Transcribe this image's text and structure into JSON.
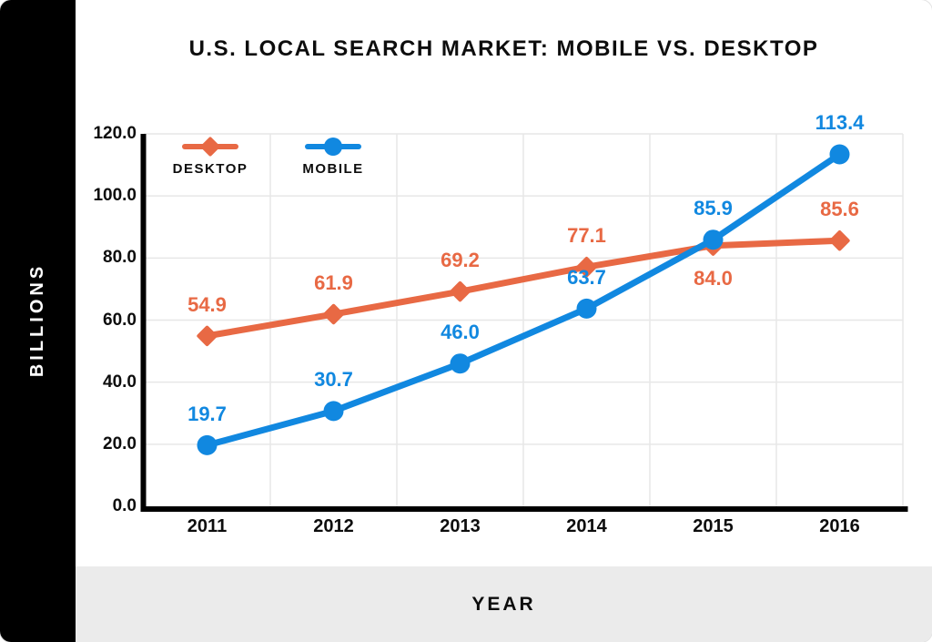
{
  "title": "U.S. LOCAL SEARCH MARKET: MOBILE VS. DESKTOP",
  "colors": {
    "background": "#ffffff",
    "sidebar_bg": "#000000",
    "footer_bg": "#ebebeb",
    "grid": "#e7e7e7",
    "axis": "#000000",
    "desktop": "#e86944",
    "mobile": "#1188e0"
  },
  "chart_data": {
    "type": "line",
    "title": "U.S. LOCAL SEARCH MARKET: MOBILE VS. DESKTOP",
    "xlabel": "YEAR",
    "ylabel": "BILLIONS",
    "categories": [
      "2011",
      "2012",
      "2013",
      "2014",
      "2015",
      "2016"
    ],
    "y_ticks": [
      "0.0",
      "20.0",
      "40.0",
      "60.0",
      "80.0",
      "100.0",
      "120.0"
    ],
    "ylim": [
      0,
      120
    ],
    "grid": true,
    "legend_position": "top-left",
    "series": [
      {
        "name": "DESKTOP",
        "marker": "diamond",
        "color": "#e86944",
        "values": [
          54.9,
          61.9,
          69.2,
          77.1,
          84.0,
          85.6
        ],
        "label_positions": [
          "above",
          "above",
          "above",
          "above",
          "below",
          "above"
        ]
      },
      {
        "name": "MOBILE",
        "marker": "circle",
        "color": "#1188e0",
        "values": [
          19.7,
          30.7,
          46.0,
          63.7,
          85.9,
          113.4
        ],
        "label_positions": [
          "above",
          "above",
          "above",
          "above",
          "above",
          "above"
        ]
      }
    ]
  }
}
